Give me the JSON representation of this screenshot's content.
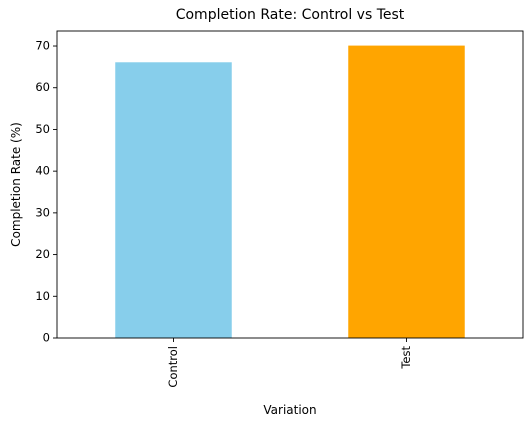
{
  "chart_data": {
    "type": "bar",
    "title": "Completion Rate: Control vs Test",
    "xlabel": "Variation",
    "ylabel": "Completion Rate (%)",
    "categories": [
      "Control",
      "Test"
    ],
    "values": [
      66.1,
      70.1
    ],
    "colors": [
      "#87ceeb",
      "#ffa500"
    ],
    "ylim": [
      0,
      73.6
    ],
    "yticks": [
      0,
      10,
      20,
      30,
      40,
      50,
      60,
      70
    ],
    "xtick_rotation": "vertical",
    "grid": false,
    "legend": "none"
  }
}
